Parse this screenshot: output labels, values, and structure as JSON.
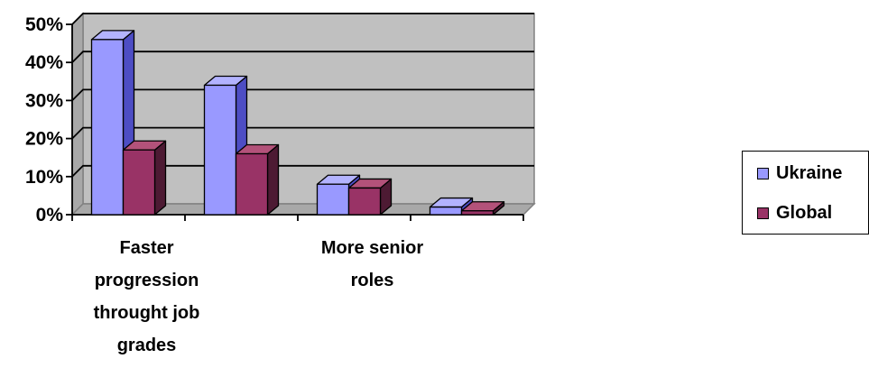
{
  "chart_data": {
    "type": "bar",
    "style": "3d-clustered-column",
    "categories": [
      "Faster progression throught job grades",
      "",
      "More senior roles",
      ""
    ],
    "series": [
      {
        "name": "Ukraine",
        "values": [
          46,
          34,
          8,
          2
        ],
        "color": "#9999ff",
        "side_color": "#4d4dc4",
        "top_color": "#b3b3ff"
      },
      {
        "name": "Global",
        "values": [
          17,
          16,
          7,
          1
        ],
        "color": "#993366",
        "side_color": "#4d1a33",
        "top_color": "#b3527a"
      }
    ],
    "ylim": [
      0,
      50
    ],
    "yticks": [
      0,
      10,
      20,
      30,
      40,
      50
    ],
    "ytick_labels": [
      "0%",
      "10%",
      "20%",
      "30%",
      "40%",
      "50%"
    ],
    "grid": true,
    "wall_color": "#c0c0c0",
    "legend_position": "right"
  }
}
